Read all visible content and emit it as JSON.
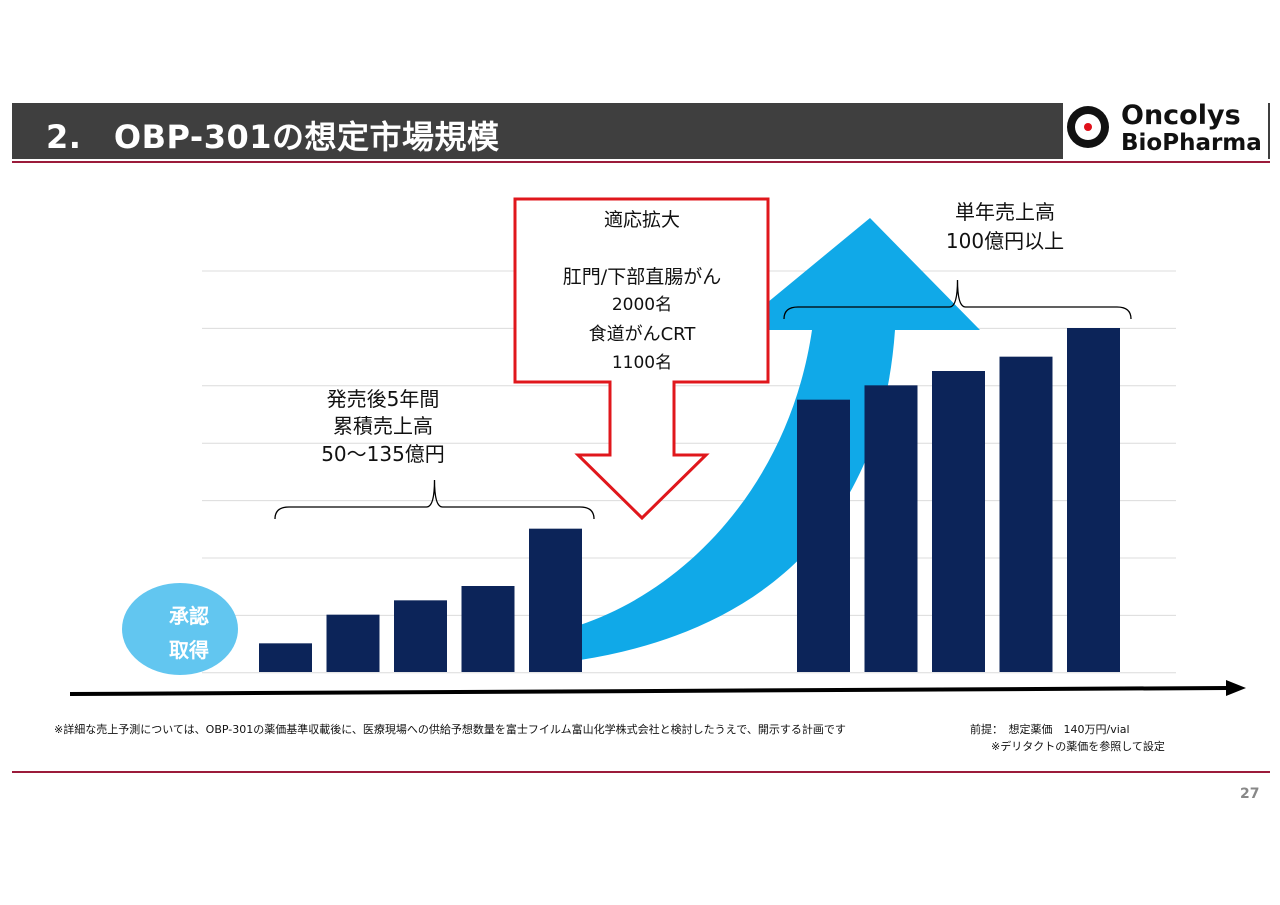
{
  "header": {
    "title": "2.　OBP-301の想定市場規模",
    "logo_line1": "Oncolys",
    "logo_line2": "BioPharma"
  },
  "chart_data": {
    "type": "bar",
    "group1": {
      "values": [
        1,
        2,
        2.5,
        3,
        5
      ]
    },
    "group2": {
      "values": [
        9.5,
        10,
        10.5,
        11,
        12
      ]
    },
    "group1_annotation": [
      "発売後5年間",
      "累積売上高",
      "50～135億円"
    ],
    "group2_annotation": [
      "単年売上高",
      "100億円以上"
    ],
    "approval_label": [
      "承認",
      "取得"
    ],
    "expansion_box": [
      "適応拡大",
      "",
      "肛門/下部直腸がん",
      "2000名",
      "食道がんCRT",
      "1100名"
    ],
    "colors": {
      "bar": "#0c2459",
      "growth_arrow": "#10a9e8",
      "box": "#e0171c",
      "approval_circle": "#62c6f0"
    }
  },
  "notes": {
    "footnote": "※詳細な売上予測については、OBP-301の薬価基準収載後に、医療現場への供給予想数量を富士フイルム富山化学株式会社と検討したうえで、開示する計画です",
    "premise": "前提：　想定薬価　140万円/vial",
    "premise_note": "※デリタクトの薬価を参照して設定"
  },
  "page_number": "27"
}
